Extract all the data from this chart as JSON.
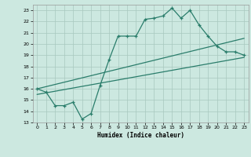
{
  "xlabel": "Humidex (Indice chaleur)",
  "xlim": [
    -0.5,
    23.5
  ],
  "ylim": [
    13,
    23.5
  ],
  "yticks": [
    13,
    14,
    15,
    16,
    17,
    18,
    19,
    20,
    21,
    22,
    23
  ],
  "xticks": [
    0,
    1,
    2,
    3,
    4,
    5,
    6,
    7,
    8,
    9,
    10,
    11,
    12,
    13,
    14,
    15,
    16,
    17,
    18,
    19,
    20,
    21,
    22,
    23
  ],
  "line_color": "#2a7d6b",
  "bg_color": "#cce8e0",
  "grid_color": "#a8c8be",
  "line1_x": [
    0,
    1,
    2,
    3,
    4,
    5,
    6,
    7,
    8,
    9,
    10,
    11,
    12,
    13,
    14,
    15,
    16,
    17,
    18,
    19,
    20,
    21,
    22,
    23
  ],
  "line1_y": [
    16.0,
    15.7,
    14.5,
    14.5,
    14.8,
    13.3,
    13.8,
    16.3,
    18.6,
    20.7,
    20.7,
    20.7,
    22.2,
    22.3,
    22.5,
    23.2,
    22.3,
    23.0,
    21.7,
    20.7,
    19.8,
    19.3,
    19.3,
    19.0
  ],
  "line2_x": [
    0,
    23
  ],
  "line2_y": [
    15.5,
    18.8
  ],
  "line3_x": [
    0,
    23
  ],
  "line3_y": [
    16.0,
    20.5
  ]
}
